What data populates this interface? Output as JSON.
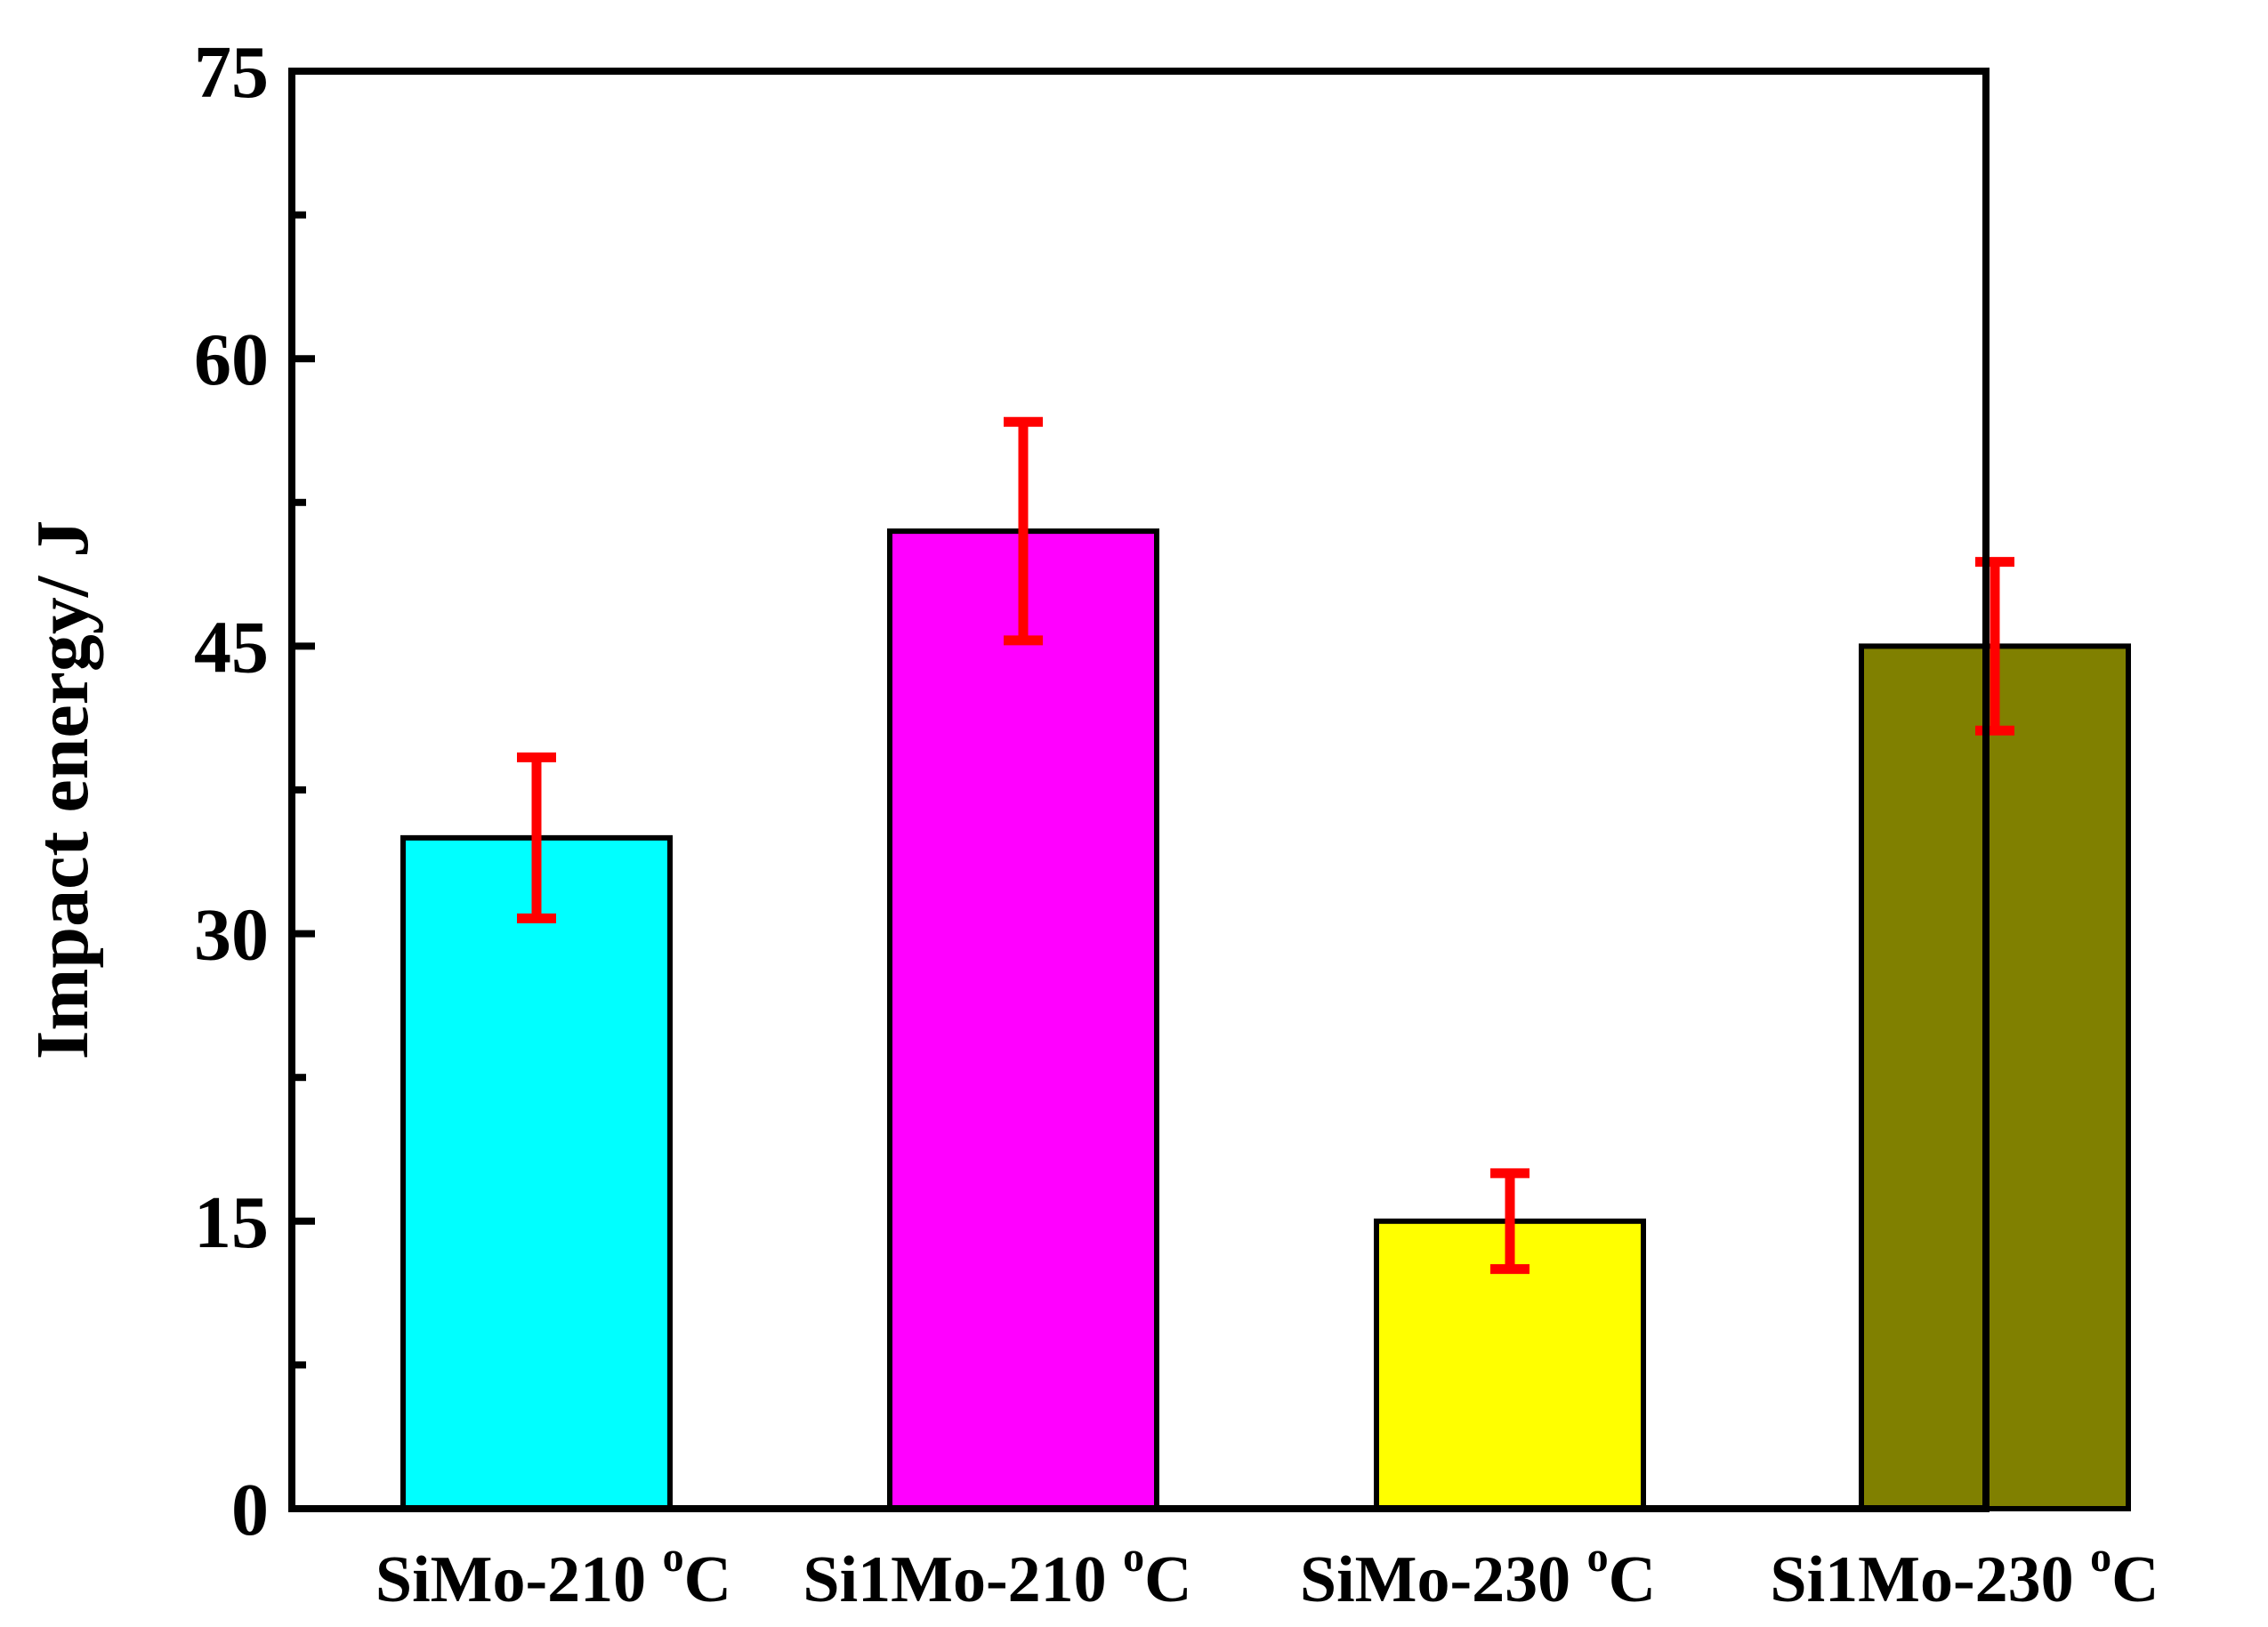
{
  "chart_data": {
    "type": "bar",
    "title": "",
    "xlabel": "",
    "ylabel": "Impact energy/ J",
    "ylim": [
      0,
      75
    ],
    "yticks": [
      0,
      15,
      30,
      45,
      60,
      75
    ],
    "yminor": [
      7.5,
      22.5,
      37.5,
      52.5,
      67.5
    ],
    "grid": false,
    "categories": [
      {
        "base": "SiMo-210 ",
        "sup": "o",
        "unit": "C"
      },
      {
        "base": "Si1Mo-210 ",
        "sup": "o",
        "unit": "C"
      },
      {
        "base": "SiMo-230 ",
        "sup": "o",
        "unit": "C"
      },
      {
        "base": "Si1Mo-230 ",
        "sup": "o",
        "unit": "C"
      }
    ],
    "values": [
      35,
      51,
      15,
      45
    ],
    "errors": [
      {
        "low": 30.8,
        "high": 39.2
      },
      {
        "low": 45.3,
        "high": 56.7
      },
      {
        "low": 12.5,
        "high": 17.5
      },
      {
        "low": 40.6,
        "high": 49.4
      }
    ],
    "colors": [
      "#00ffff",
      "#ff00ff",
      "#ffff00",
      "#808000"
    ],
    "error_color": "#ff0000"
  }
}
